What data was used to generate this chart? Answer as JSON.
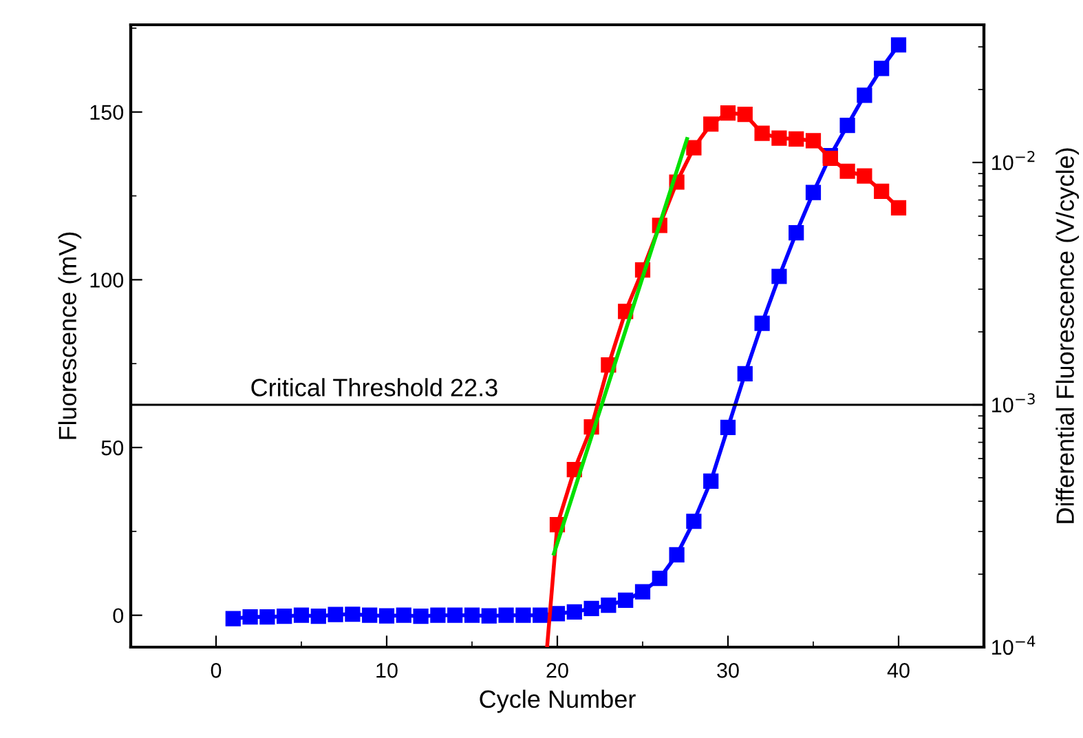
{
  "chart_data": {
    "type": "line",
    "xlabel": "Cycle Number",
    "ylabel": "Fluorescence (mV)",
    "y2label": "Differential Fluorescence (V/cycle)",
    "xlim": [
      -5,
      45
    ],
    "xticks": [
      0,
      10,
      20,
      30,
      40
    ],
    "ylim": [
      -9.5,
      176
    ],
    "yticks": [
      0,
      50,
      100,
      150
    ],
    "y2lim": [
      0.0001,
      0.037
    ],
    "y2ticks": [
      {
        "value": 0.0001,
        "label": "10$^{−4}$"
      },
      {
        "value": 0.001,
        "label": "10$^{−3}$"
      },
      {
        "value": 0.01,
        "label": "10$^{−2}$"
      }
    ],
    "log": "y2",
    "marker": "square",
    "grid": false,
    "series": [
      {
        "color": "#0000ff",
        "x": [
          1,
          2,
          3,
          4,
          5,
          6,
          7,
          8,
          9,
          10,
          11,
          12,
          13,
          14,
          15,
          16,
          17,
          18,
          19,
          20,
          21,
          22,
          23,
          24,
          25,
          26,
          27,
          28,
          29,
          30,
          31,
          32,
          33,
          34,
          35,
          36,
          37,
          38,
          39,
          40
        ],
        "values": [
          -1,
          -0.5,
          -0.5,
          -0.3,
          0,
          -0.3,
          0.2,
          0.3,
          0,
          -0.2,
          0,
          -0.3,
          0,
          0,
          0,
          -0.2,
          0,
          0,
          0,
          0.5,
          1,
          2,
          3,
          4.5,
          7,
          11,
          18,
          28,
          40,
          56,
          72,
          87,
          101,
          114,
          126,
          137,
          146,
          155,
          163,
          170
        ]
      },
      {
        "color": "#ff0000",
        "axis": "y2",
        "x": [
          20,
          21,
          22,
          23,
          24,
          25,
          26,
          27,
          28,
          29,
          30,
          31,
          32,
          33,
          34,
          35,
          36,
          37,
          38,
          39,
          40
        ],
        "values": [
          0.00032,
          0.00054,
          0.00081,
          0.00146,
          0.00243,
          0.0036,
          0.0055,
          0.0083,
          0.0115,
          0.0144,
          0.016,
          0.0158,
          0.0132,
          0.0126,
          0.0125,
          0.0123,
          0.0104,
          0.0092,
          0.0088,
          0.0076,
          0.0065
        ]
      },
      {
        "color": "#ff0000",
        "axis": "y2",
        "marker": "none",
        "x": [
          19.4,
          20
        ],
        "values": [
          0.0001,
          0.00032
        ]
      },
      {
        "color": "#00e000",
        "axis": "y2",
        "marker": "none",
        "x": [
          19.8,
          27.6
        ],
        "values": [
          0.000243,
          0.0125
        ]
      }
    ],
    "ref_lines": [
      {
        "axis": "y2",
        "value": 0.001,
        "color": "#000000",
        "line_style": "solid"
      }
    ],
    "annotations": [
      "Critical Threshold 22.3"
    ]
  }
}
